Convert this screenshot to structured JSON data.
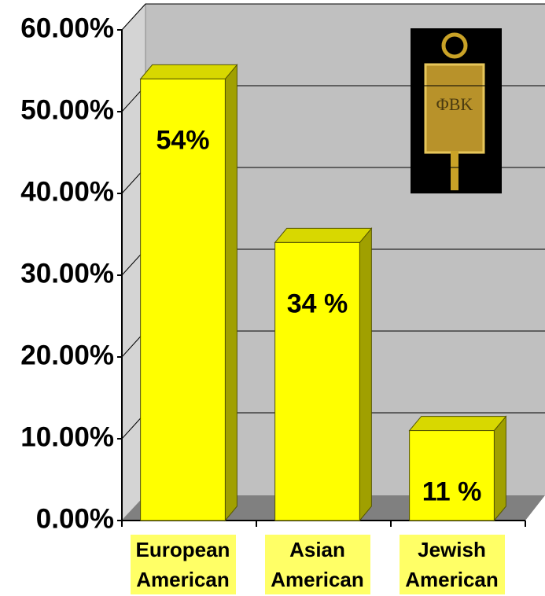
{
  "chart_data": {
    "type": "bar",
    "categories": [
      "European American",
      "Asian American",
      "Jewish American"
    ],
    "values": [
      54,
      34,
      11
    ],
    "value_labels": [
      "54%",
      "34 %",
      "11 %"
    ],
    "color": "#ffff00",
    "ylim": [
      0,
      60
    ],
    "yticks": [
      {
        "value": 0,
        "label": "0.00%"
      },
      {
        "value": 10,
        "label": "10.00%"
      },
      {
        "value": 20,
        "label": "20.00%"
      },
      {
        "value": 30,
        "label": "30.00%"
      },
      {
        "value": 40,
        "label": "40.00%"
      },
      {
        "value": 50,
        "label": "50.00%"
      },
      {
        "value": 60,
        "label": "60.00%"
      }
    ],
    "grid": true
  }
}
